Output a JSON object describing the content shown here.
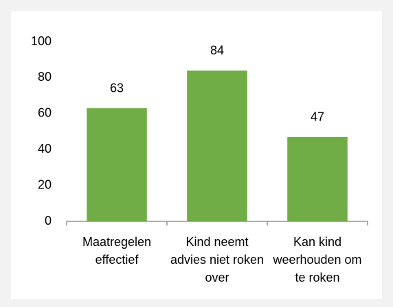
{
  "chart_data": {
    "type": "bar",
    "categories": [
      "Maatregelen effectief",
      "Kind neemt advies niet roken over",
      "Kan kind weerhouden om te roken"
    ],
    "values": [
      63,
      84,
      47
    ],
    "color": "#70ad47",
    "ylim": [
      0,
      100
    ],
    "yticks": [
      0,
      20,
      40,
      60,
      80,
      100
    ],
    "grid": false
  }
}
